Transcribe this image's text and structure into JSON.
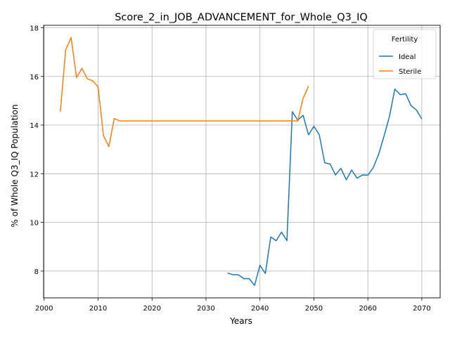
{
  "chart_data": {
    "type": "line",
    "title": "Score_2_in_JOB_ADVANCEMENT_for_Whole_Q3_IQ",
    "xlabel": "Years",
    "ylabel": "% of Whole Q3_IQ Population",
    "xlim": [
      1999.9,
      2073.4
    ],
    "ylim": [
      6.9,
      18.1
    ],
    "xticks": [
      2000,
      2010,
      2020,
      2030,
      2040,
      2050,
      2060,
      2070
    ],
    "yticks": [
      8,
      10,
      12,
      14,
      16,
      18
    ],
    "grid": true,
    "legend": {
      "title": "Fertility",
      "placement": "top-right"
    },
    "series": [
      {
        "name": "Ideal",
        "color": "#1f77b4",
        "x": [
          2034,
          2035,
          2036,
          2037,
          2038,
          2039,
          2040,
          2041,
          2042,
          2043,
          2044,
          2045,
          2046,
          2047,
          2048,
          2049,
          2050,
          2051,
          2052,
          2053,
          2054,
          2055,
          2056,
          2057,
          2058,
          2059,
          2060,
          2061,
          2062,
          2063,
          2064,
          2065,
          2066,
          2067,
          2068,
          2069,
          2070
        ],
        "values": [
          7.92,
          7.85,
          7.85,
          7.69,
          7.69,
          7.41,
          8.24,
          7.9,
          9.4,
          9.25,
          9.6,
          9.25,
          14.55,
          14.2,
          14.4,
          13.6,
          13.95,
          13.6,
          12.45,
          12.4,
          11.95,
          12.22,
          11.75,
          12.15,
          11.82,
          11.95,
          11.94,
          12.25,
          12.8,
          13.55,
          14.35,
          15.48,
          15.25,
          15.29,
          14.8,
          14.62,
          14.25
        ]
      },
      {
        "name": "Sterile",
        "color": "#ff7f0e",
        "x": [
          2003,
          2004,
          2005,
          2006,
          2007,
          2008,
          2009,
          2010,
          2011,
          2012,
          2013,
          2014,
          2015,
          2016,
          2017,
          2018,
          2019,
          2020,
          2021,
          2022,
          2023,
          2024,
          2025,
          2026,
          2027,
          2028,
          2029,
          2030,
          2031,
          2032,
          2033,
          2034,
          2035,
          2036,
          2037,
          2038,
          2039,
          2040,
          2041,
          2042,
          2043,
          2044,
          2045,
          2046,
          2047,
          2048,
          2049
        ],
        "values": [
          14.55,
          17.1,
          17.6,
          15.95,
          16.33,
          15.9,
          15.82,
          15.57,
          13.56,
          13.12,
          14.27,
          14.17,
          14.17,
          14.17,
          14.17,
          14.17,
          14.17,
          14.17,
          14.17,
          14.17,
          14.17,
          14.17,
          14.17,
          14.17,
          14.17,
          14.17,
          14.17,
          14.17,
          14.17,
          14.17,
          14.17,
          14.17,
          14.17,
          14.17,
          14.17,
          14.17,
          14.17,
          14.17,
          14.17,
          14.17,
          14.17,
          14.17,
          14.17,
          14.17,
          14.17,
          15.1,
          15.6
        ]
      }
    ]
  }
}
